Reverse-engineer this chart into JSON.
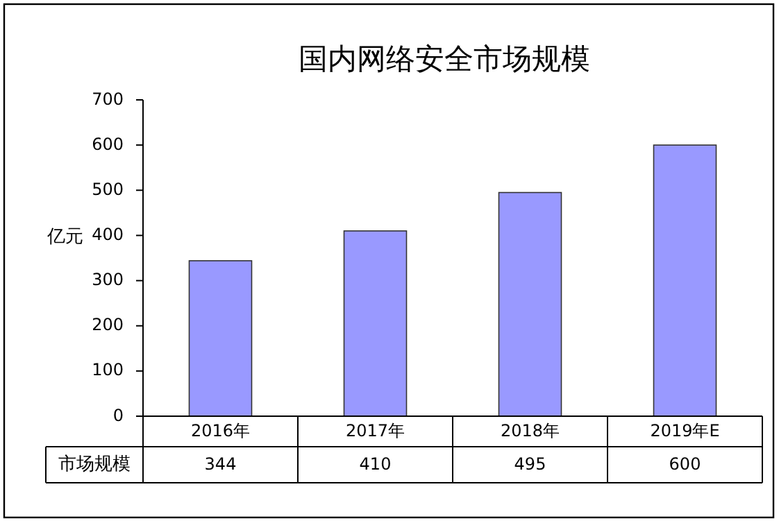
{
  "chart_data": {
    "type": "bar",
    "title": "国内网络安全市场规模",
    "ylabel": "亿元",
    "categories": [
      "2016年",
      "2017年",
      "2018年",
      "2019年E"
    ],
    "series": [
      {
        "name": "市场规模",
        "color": "#9999ff",
        "values": [
          344,
          410,
          495,
          600
        ]
      }
    ],
    "ylim": [
      0,
      700
    ],
    "yticks": [
      0,
      100,
      200,
      300,
      400,
      500,
      600,
      700
    ],
    "data_labels": true,
    "grid": false
  }
}
